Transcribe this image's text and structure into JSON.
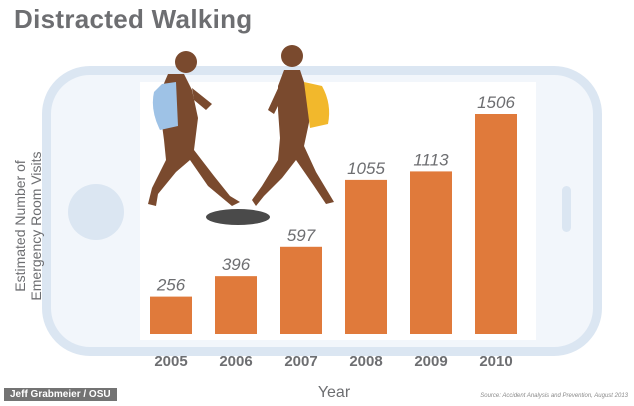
{
  "title": "Distracted Walking",
  "credit": "Jeff Grabmeier / OSU",
  "source": "Source: Accident Analysis and Prevention, August 2013",
  "chart_data": {
    "type": "bar",
    "title": "Distracted Walking",
    "ylabel_lines": [
      "Estimated Number of",
      "Emergency Room Visits"
    ],
    "xlabel": "Year",
    "categories": [
      "2005",
      "2006",
      "2007",
      "2008",
      "2009",
      "2010"
    ],
    "values": [
      256,
      396,
      597,
      1055,
      1113,
      1506
    ],
    "data_labels": [
      "256",
      "396",
      "597",
      "1055",
      "1113",
      "1506"
    ],
    "ylim": [
      0,
      1506
    ],
    "bar_color": "#e07a3b",
    "grid": false,
    "legend": "none"
  },
  "colors": {
    "title": "#6d6e71",
    "phone_frame": "#dbe6f2",
    "figure": "#7a4a2e",
    "backpack_blue": "#9ec2e6",
    "backpack_yellow": "#f2b82c",
    "manhole": "#4a4a4a"
  },
  "icons": [
    "walking-person-icon",
    "walking-person-icon",
    "manhole-icon",
    "phone-home-button-icon"
  ]
}
